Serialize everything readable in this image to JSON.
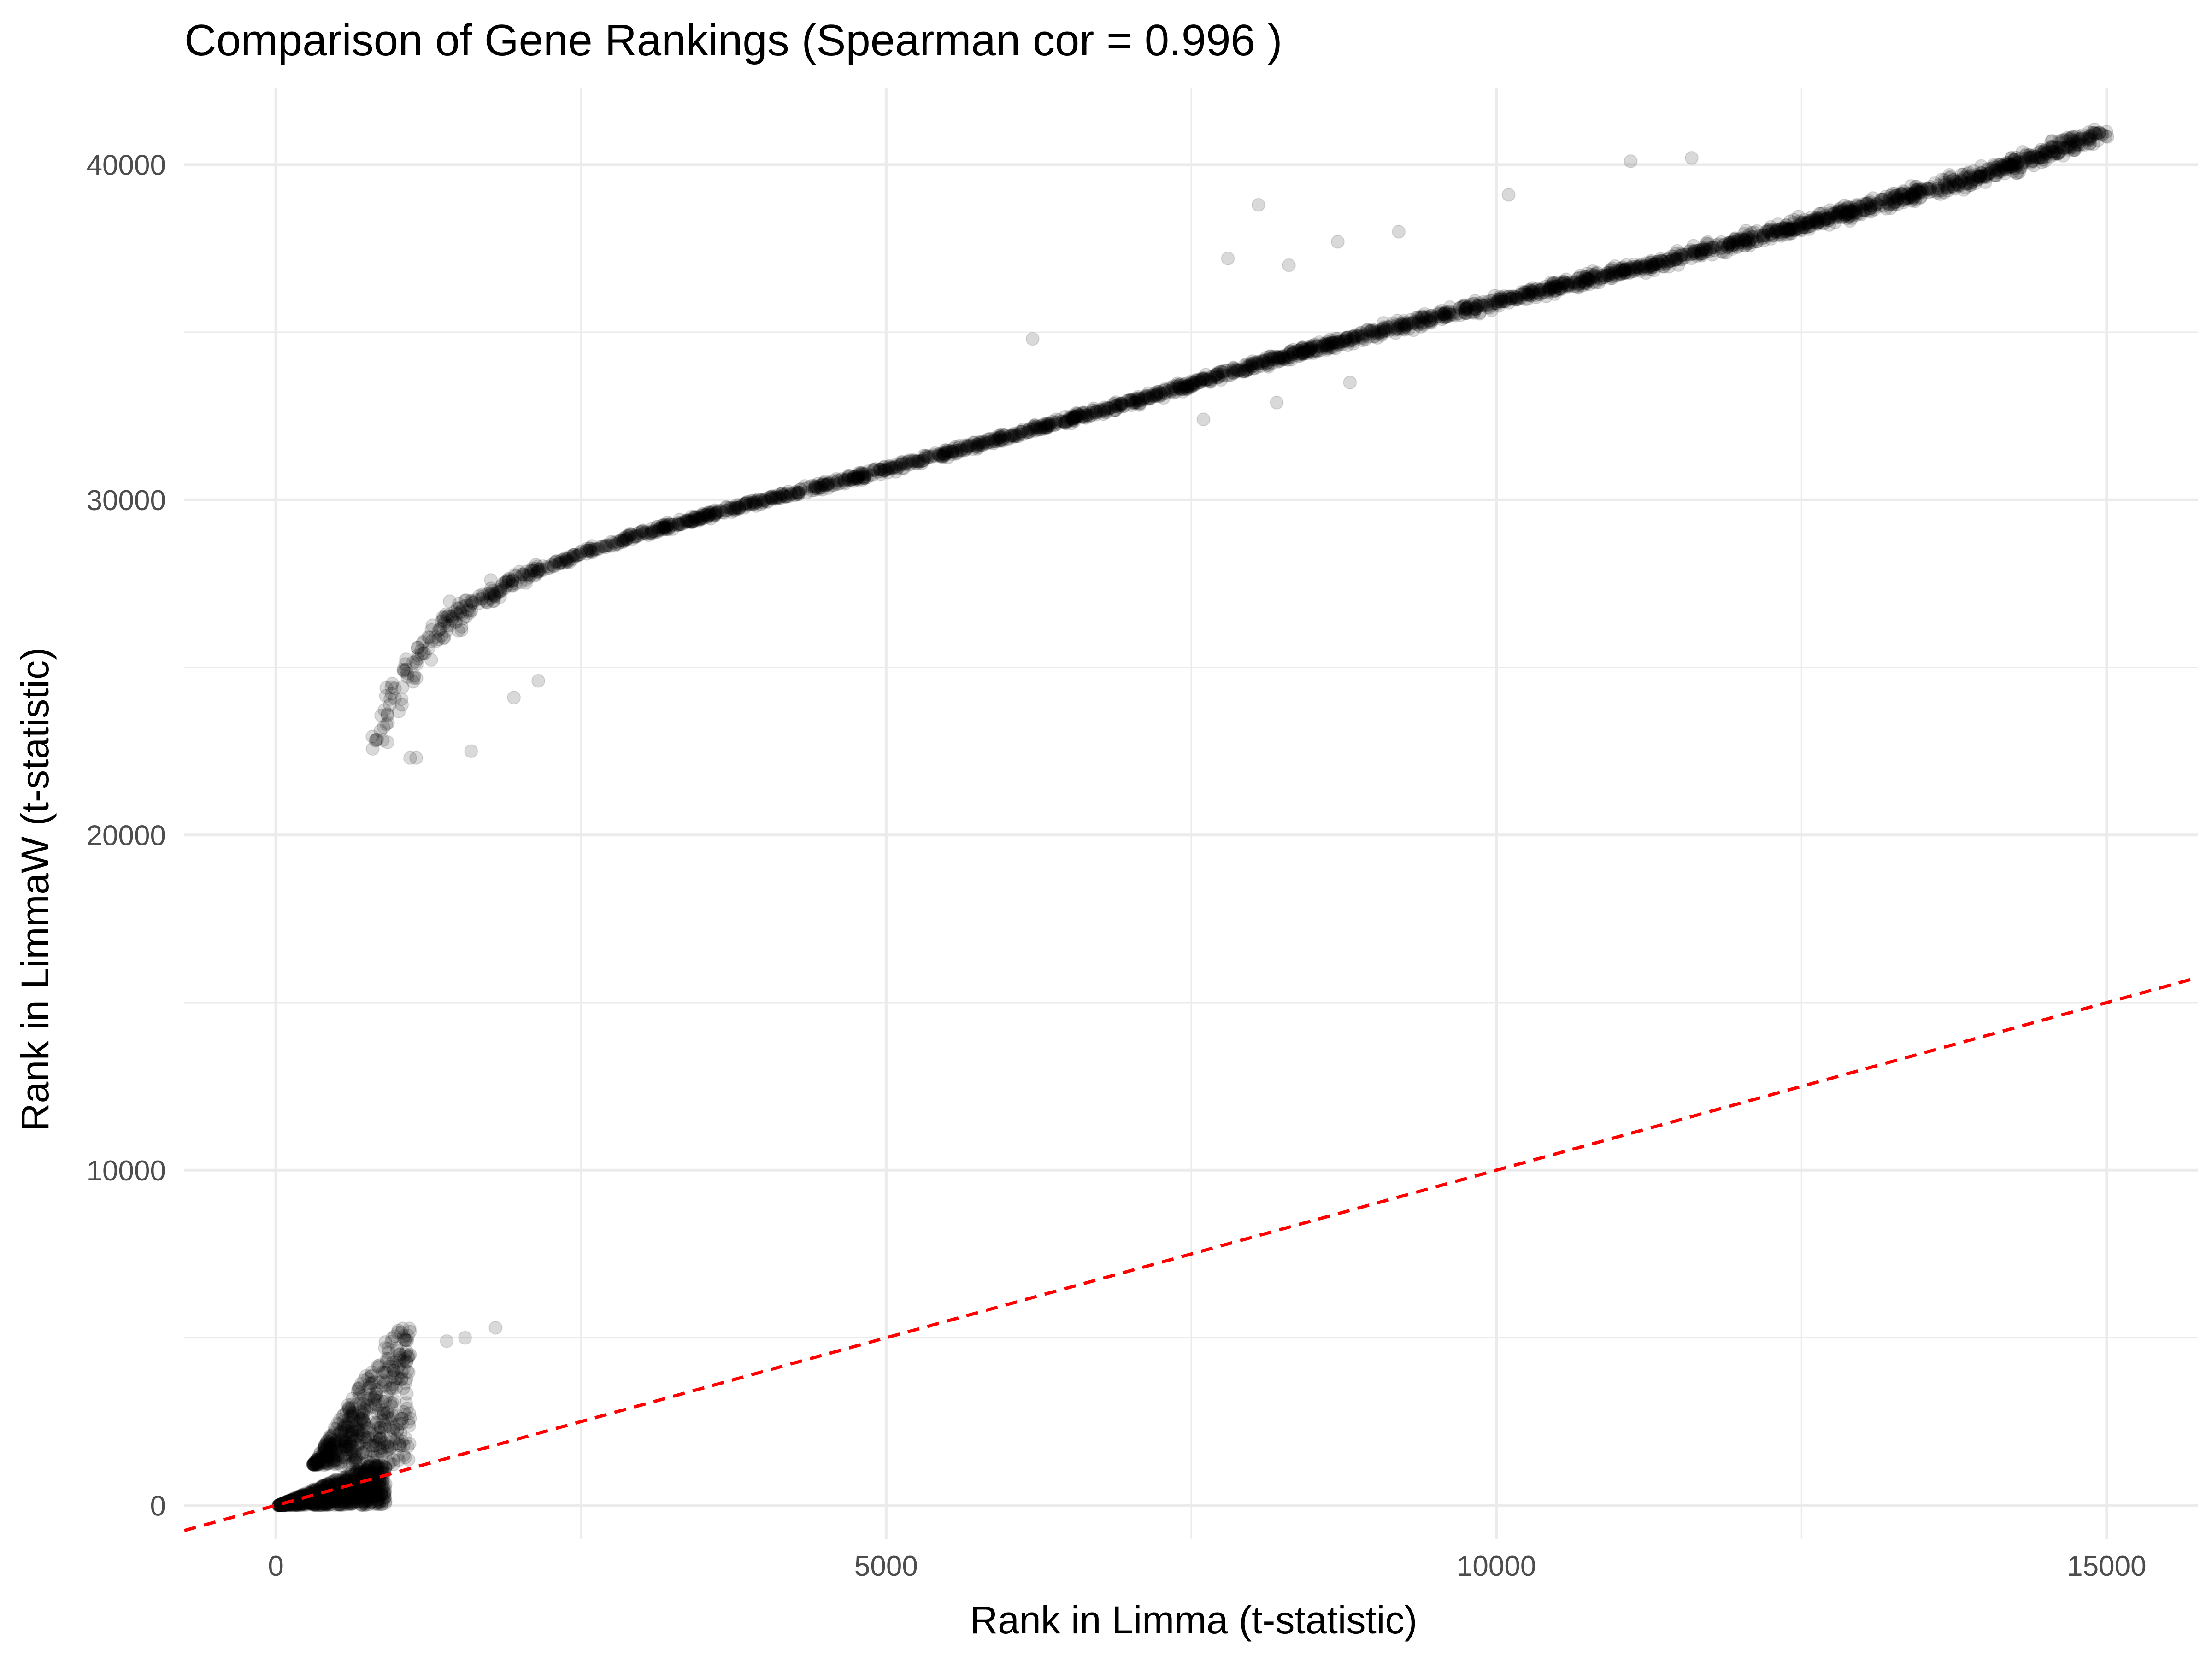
{
  "chart_data": {
    "type": "scatter",
    "title": "Comparison of Gene Rankings (Spearman cor = 0.996 )",
    "xlabel": "Rank in Limma (t-statistic)",
    "ylabel": "Rank in LimmaW (t-statistic)",
    "xlim": [
      -750,
      15750
    ],
    "ylim": [
      -1000,
      42300
    ],
    "x_ticks": [
      0,
      5000,
      10000,
      15000
    ],
    "x_tick_labels": [
      "0",
      "5000",
      "10000",
      "15000"
    ],
    "y_ticks": [
      0,
      10000,
      20000,
      30000,
      40000
    ],
    "y_tick_labels": [
      "0",
      "10000",
      "20000",
      "30000",
      "40000"
    ],
    "grid": true,
    "legend": "none",
    "point_color": "#000000",
    "point_alpha": 0.15,
    "reference_line": {
      "slope": 1,
      "intercept": 0,
      "style": "dashed",
      "color": "#ff0000"
    },
    "series": [
      {
        "clusters": [
          {
            "x": [
              20,
              900
            ],
            "y_range": [
              0,
              1200
            ],
            "density": 900,
            "note": ""
          },
          {
            "x": [
              300,
              1100
            ],
            "y_range": [
              1200,
              5300
            ],
            "density": 500,
            "note": ""
          }
        ],
        "trend": {
          "x": [
            800,
            900,
            1000,
            1100,
            1200,
            1400,
            1600,
            1800,
            2000,
            2500,
            3000,
            3500,
            4000,
            5000,
            6000,
            7000,
            8000,
            9000,
            10000,
            11000,
            12000,
            13000,
            14000,
            15000
          ],
          "y": [
            22300,
            23500,
            24300,
            25000,
            25500,
            26300,
            26900,
            27300,
            27700,
            28400,
            29000,
            29500,
            30000,
            30900,
            31900,
            32900,
            34000,
            35000,
            35900,
            36800,
            37700,
            38700,
            39700,
            41000
          ]
        },
        "highlight_points": [
          {
            "x": 1100,
            "y": 22300
          },
          {
            "x": 1150,
            "y": 22300
          },
          {
            "x": 1600,
            "y": 22500
          },
          {
            "x": 1950,
            "y": 24100
          },
          {
            "x": 2150,
            "y": 24600
          },
          {
            "x": 1800,
            "y": 5300
          },
          {
            "x": 1550,
            "y": 5000
          },
          {
            "x": 1400,
            "y": 4900
          },
          {
            "x": 8050,
            "y": 38800
          },
          {
            "x": 7800,
            "y": 37200
          },
          {
            "x": 8300,
            "y": 37000
          },
          {
            "x": 8700,
            "y": 37700
          },
          {
            "x": 9200,
            "y": 38000
          },
          {
            "x": 6200,
            "y": 34800
          },
          {
            "x": 7600,
            "y": 32400
          },
          {
            "x": 8200,
            "y": 32900
          },
          {
            "x": 8800,
            "y": 33500
          },
          {
            "x": 10100,
            "y": 39100
          },
          {
            "x": 11100,
            "y": 40100
          },
          {
            "x": 11600,
            "y": 40200
          }
        ]
      }
    ]
  }
}
